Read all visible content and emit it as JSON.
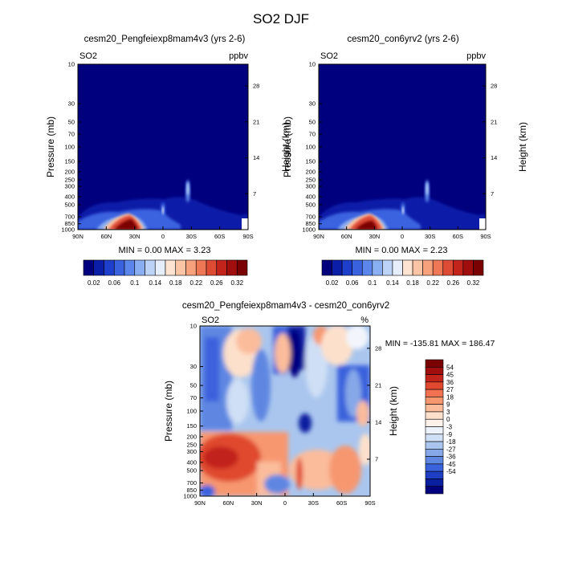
{
  "figure": {
    "title": "SO2 DJF"
  },
  "panel_top_left": {
    "title": "cesm20_Pengfeiexp8mam4v3 (yrs 2-6)",
    "var_label": "SO2",
    "units": "ppbv",
    "min_max": "MIN =   0.00  MAX =   3.23"
  },
  "panel_top_right": {
    "title": "cesm20_con6yrv2 (yrs 2-6)",
    "var_label": "SO2",
    "units": "ppbv",
    "min_max": "MIN =   0.00  MAX =   2.23"
  },
  "panel_bottom": {
    "title": "cesm20_Pengfeiexp8mam4v3 - cesm20_con6yrv2",
    "var_label": "SO2",
    "units": "%",
    "min_max": "MIN = -135.81  MAX = 186.47"
  },
  "colors": {
    "top_levels": [
      "#00007f",
      "#0a1ea8",
      "#1e3fcb",
      "#3a62df",
      "#5c86eb",
      "#89aef2",
      "#bcd3f7",
      "#e7eefb",
      "#fde3d2",
      "#fbc4a4",
      "#f6a07c",
      "#ee7755",
      "#dd4b35",
      "#c2241c",
      "#a00e0e",
      "#7a0202"
    ],
    "diff_levels": [
      "#7a0202",
      "#a00e0e",
      "#c2241c",
      "#e0492f",
      "#f27150",
      "#f7976f",
      "#fbbc9b",
      "#fde0cb",
      "#fff2ea",
      "#edf3fc",
      "#cfdff5",
      "#aac6ee",
      "#86a8e8",
      "#5e87e2",
      "#3a62dc",
      "#1e3fc4",
      "#0a1ea0",
      "#00007f"
    ]
  },
  "chart_data": [
    {
      "type": "heatmap",
      "title": "cesm20_Pengfeiexp8mam4v3 (yrs 2-6)",
      "ylabel": "Pressure (mb)",
      "ylabel_right": "Height (km)",
      "x": [
        "90N",
        "60N",
        "30N",
        "0",
        "30S",
        "60S",
        "90S"
      ],
      "y_ticks": [
        "10",
        "30",
        "50",
        "70",
        "100",
        "150",
        "200",
        "250",
        "300",
        "400",
        "500",
        "700",
        "850",
        "1000"
      ],
      "y_right_ticks": [
        "28",
        "21",
        "14",
        "7"
      ],
      "xlim": [
        "90N",
        "90S"
      ],
      "ylim": [
        1000,
        10
      ],
      "y_scale": "log",
      "colorbar_labels": [
        "0.02",
        "0.06",
        "0.1",
        "0.14",
        "0.18",
        "0.22",
        "0.26",
        "0.32"
      ],
      "min": 0.0,
      "max": 3.23
    },
    {
      "type": "heatmap",
      "title": "cesm20_con6yrv2 (yrs 2-6)",
      "ylabel": "Pressure (mb)",
      "ylabel_right": "Height (km)",
      "x": [
        "90N",
        "60N",
        "30N",
        "0",
        "30S",
        "60S",
        "90S"
      ],
      "y_ticks": [
        "10",
        "30",
        "50",
        "70",
        "100",
        "150",
        "200",
        "250",
        "300",
        "400",
        "500",
        "700",
        "850",
        "1000"
      ],
      "y_right_ticks": [
        "28",
        "21",
        "14",
        "7"
      ],
      "xlim": [
        "90N",
        "90S"
      ],
      "ylim": [
        1000,
        10
      ],
      "y_scale": "log",
      "colorbar_labels": [
        "0.02",
        "0.06",
        "0.1",
        "0.14",
        "0.18",
        "0.22",
        "0.26",
        "0.32"
      ],
      "min": 0.0,
      "max": 2.23
    },
    {
      "type": "heatmap",
      "title": "cesm20_Pengfeiexp8mam4v3 - cesm20_con6yrv2",
      "ylabel": "Pressure (mb)",
      "ylabel_right": "Height (km)",
      "x": [
        "90N",
        "60N",
        "30N",
        "0",
        "30S",
        "60S",
        "90S"
      ],
      "y_ticks": [
        "10",
        "30",
        "50",
        "70",
        "100",
        "150",
        "200",
        "250",
        "300",
        "400",
        "500",
        "700",
        "850",
        "1000"
      ],
      "y_right_ticks": [
        "28",
        "21",
        "14",
        "7"
      ],
      "xlim": [
        "90N",
        "90S"
      ],
      "ylim": [
        1000,
        10
      ],
      "y_scale": "log",
      "colorbar_labels": [
        "54",
        "45",
        "36",
        "27",
        "18",
        "9",
        "3",
        "0",
        "-3",
        "-9",
        "-18",
        "-27",
        "-36",
        "-45",
        "-54"
      ],
      "min": -135.81,
      "max": 186.47
    }
  ]
}
